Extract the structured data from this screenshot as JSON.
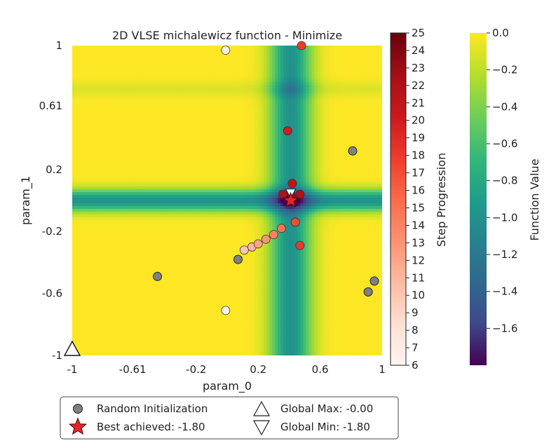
{
  "chart_data": {
    "type": "heatmap",
    "title": "2D VLSE michalewicz function - Minimize",
    "xlabel": "param_0",
    "ylabel": "param_1",
    "xlim": [
      -1,
      1
    ],
    "ylim": [
      -1,
      1
    ],
    "x_ticks": [
      {
        "value": -1,
        "label": "-1"
      },
      {
        "value": -0.61,
        "label": "-0.61"
      },
      {
        "value": -0.2,
        "label": "-0.2"
      },
      {
        "value": 0.2,
        "label": "0.2"
      },
      {
        "value": 0.6,
        "label": "0.6"
      },
      {
        "value": 1,
        "label": "1"
      }
    ],
    "y_ticks": [
      {
        "value": -1,
        "label": "-1"
      },
      {
        "value": -0.6,
        "label": "-0.6"
      },
      {
        "value": -0.2,
        "label": "-0.2"
      },
      {
        "value": 0.2,
        "label": "0.2"
      },
      {
        "value": 0.61,
        "label": "0.61"
      },
      {
        "value": 1,
        "label": "1"
      }
    ],
    "surface": {
      "vertical_valley_center_x": 0.41,
      "vertical_valley_halfwidth": 0.13,
      "horizontal_valley_center_y": 0.0,
      "horizontal_valley_halfwidth": 0.07,
      "secondary_valley_center_y": 0.72,
      "min_value": -1.8,
      "max_value": 0.0
    },
    "random_initialization": [
      {
        "x": -0.45,
        "y": -0.49
      },
      {
        "x": 0.07,
        "y": -0.38
      },
      {
        "x": 0.81,
        "y": 0.32
      },
      {
        "x": 0.91,
        "y": -0.59
      },
      {
        "x": 0.95,
        "y": -0.52
      }
    ],
    "step_points": [
      {
        "x": -0.01,
        "y": 0.97,
        "step": 6
      },
      {
        "x": -0.01,
        "y": -0.71,
        "step": 6
      },
      {
        "x": 0.11,
        "y": -0.32,
        "step": 10
      },
      {
        "x": 0.16,
        "y": -0.3,
        "step": 11
      },
      {
        "x": 0.2,
        "y": -0.28,
        "step": 12
      },
      {
        "x": 0.25,
        "y": -0.25,
        "step": 13
      },
      {
        "x": 0.3,
        "y": -0.22,
        "step": 14
      },
      {
        "x": 0.35,
        "y": -0.18,
        "step": 15
      },
      {
        "x": 0.44,
        "y": -0.14,
        "step": 17
      },
      {
        "x": 0.47,
        "y": -0.29,
        "step": 18
      },
      {
        "x": 0.48,
        "y": 1.0,
        "step": 18
      },
      {
        "x": 0.39,
        "y": 0.45,
        "step": 20
      },
      {
        "x": 0.42,
        "y": 0.11,
        "step": 21
      },
      {
        "x": 0.36,
        "y": 0.04,
        "step": 22
      },
      {
        "x": 0.47,
        "y": 0.04,
        "step": 22
      },
      {
        "x": 0.42,
        "y": 0.02,
        "step": 23
      }
    ],
    "best_achieved": {
      "x": 0.41,
      "y": 0.0,
      "value": -1.8
    },
    "global_min": {
      "x": 0.41,
      "y": 0.02,
      "value": -1.8
    },
    "global_max": {
      "x": -1.0,
      "y": -1.0,
      "value": 0.0
    },
    "colorbar_steps": {
      "label": "Step Progression",
      "min": 6,
      "max": 25,
      "ticks": [
        6,
        7,
        8,
        9,
        10,
        11,
        12,
        13,
        14,
        15,
        16,
        17,
        18,
        19,
        20,
        21,
        22,
        23,
        24,
        25
      ]
    },
    "colorbar_values": {
      "label": "Function Value",
      "min": -1.8,
      "max": 0.0,
      "ticks": [
        {
          "value": 0.0,
          "label": "0.0"
        },
        {
          "value": -0.2,
          "label": "−0.2"
        },
        {
          "value": -0.4,
          "label": "−0.4"
        },
        {
          "value": -0.6,
          "label": "−0.6"
        },
        {
          "value": -0.8,
          "label": "−0.8"
        },
        {
          "value": -1.0,
          "label": "−1.0"
        },
        {
          "value": -1.2,
          "label": "−1.2"
        },
        {
          "value": -1.4,
          "label": "−1.4"
        },
        {
          "value": -1.6,
          "label": "−1.6"
        }
      ]
    },
    "legend": {
      "position": "bottom",
      "random_label": "Random Initialization",
      "best_label": "Best achieved: -1.80",
      "max_label": "Global Max: -0.00",
      "min_label": "Global Min: -1.80"
    }
  }
}
